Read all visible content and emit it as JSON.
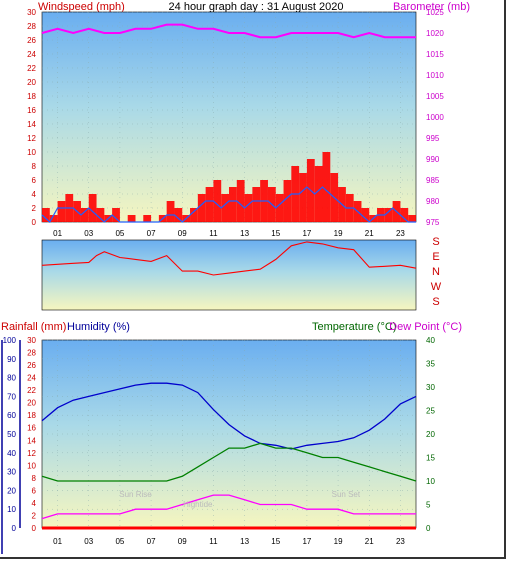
{
  "title": "24 hour graph day : 31 August 2020",
  "colors": {
    "wind_gust": "#ff0000",
    "wind_avg": "#2060ff",
    "barometer": "#ff00ff",
    "rain": "#ff0000",
    "humidity": "#0000cc",
    "temperature": "#008000",
    "dewpoint": "#ff00ff",
    "axis_red": "#cc0000",
    "axis_blue": "#000099",
    "axis_green": "#006600",
    "axis_magenta": "#cc00cc"
  },
  "chart_data": [
    {
      "type": "line",
      "name": "wind-barometer",
      "title": "24 hour graph day : 31 August 2020",
      "ylabel_left": "Windspeed (mph)",
      "ylabel_right": "Barometer (mb)",
      "x_ticks": [
        "01",
        "03",
        "05",
        "07",
        "09",
        "11",
        "13",
        "15",
        "17",
        "19",
        "21",
        "23"
      ],
      "xlim": [
        0,
        24
      ],
      "ylim_left": [
        0,
        30
      ],
      "ylim_right": [
        975,
        1025
      ],
      "y_ticks_left": [
        "0",
        "2",
        "4",
        "6",
        "8",
        "10",
        "12",
        "14",
        "16",
        "18",
        "20",
        "22",
        "24",
        "26",
        "28",
        "30"
      ],
      "y_ticks_right": [
        "975",
        "980",
        "985",
        "990",
        "995",
        "1000",
        "1005",
        "1010",
        "1015",
        "1020",
        "1025"
      ],
      "series": [
        {
          "name": "Windspeed gust",
          "axis": "left",
          "x": [
            0,
            0.5,
            1,
            1.5,
            2,
            2.5,
            3,
            3.5,
            4,
            4.5,
            5,
            5.5,
            6,
            6.5,
            7,
            7.5,
            8,
            8.5,
            9,
            9.5,
            10,
            10.5,
            11,
            11.5,
            12,
            12.5,
            13,
            13.5,
            14,
            14.5,
            15,
            15.5,
            16,
            16.5,
            17,
            17.5,
            18,
            18.5,
            19,
            19.5,
            20,
            20.5,
            21,
            21.5,
            22,
            22.5,
            23,
            23.5,
            24
          ],
          "values": [
            2,
            1,
            3,
            4,
            3,
            2,
            4,
            2,
            1,
            2,
            0,
            1,
            0,
            1,
            0,
            1,
            3,
            2,
            1,
            2,
            4,
            5,
            6,
            4,
            5,
            6,
            4,
            5,
            6,
            5,
            4,
            6,
            8,
            7,
            9,
            8,
            10,
            7,
            5,
            4,
            3,
            2,
            1,
            2,
            2,
            3,
            2,
            1,
            1
          ]
        },
        {
          "name": "Windspeed average",
          "axis": "left",
          "x": [
            0,
            0.5,
            1,
            1.5,
            2,
            2.5,
            3,
            3.5,
            4,
            4.5,
            5,
            5.5,
            6,
            6.5,
            7,
            7.5,
            8,
            8.5,
            9,
            9.5,
            10,
            10.5,
            11,
            11.5,
            12,
            12.5,
            13,
            13.5,
            14,
            14.5,
            15,
            15.5,
            16,
            16.5,
            17,
            17.5,
            18,
            18.5,
            19,
            19.5,
            20,
            20.5,
            21,
            21.5,
            22,
            22.5,
            23,
            23.5,
            24
          ],
          "values": [
            1,
            0,
            2,
            2,
            2,
            1,
            2,
            1,
            0,
            1,
            0,
            0,
            0,
            0,
            0,
            0,
            1,
            1,
            0,
            1,
            2,
            3,
            3,
            2,
            3,
            3,
            2,
            3,
            3,
            3,
            2,
            3,
            4,
            4,
            5,
            4,
            5,
            4,
            3,
            2,
            2,
            1,
            0,
            1,
            1,
            2,
            1,
            0,
            0
          ]
        },
        {
          "name": "Barometer",
          "axis": "right",
          "x": [
            0,
            1,
            2,
            3,
            4,
            5,
            6,
            7,
            8,
            9,
            10,
            11,
            12,
            13,
            14,
            15,
            16,
            17,
            18,
            19,
            20,
            21,
            22,
            23,
            24
          ],
          "values": [
            1020,
            1021,
            1020,
            1021,
            1020,
            1020,
            1021,
            1021,
            1022,
            1022,
            1021,
            1021,
            1020,
            1020,
            1019,
            1019,
            1020,
            1020,
            1020,
            1020,
            1019,
            1020,
            1019,
            1019,
            1019
          ]
        }
      ]
    },
    {
      "type": "line",
      "name": "wind-direction",
      "y_labels": [
        "S",
        "E",
        "N",
        "W",
        "S"
      ],
      "series": [
        {
          "name": "Wind direction",
          "x": [
            0,
            1,
            2,
            3,
            3.5,
            4,
            5,
            6,
            7,
            8,
            9,
            10,
            11,
            12,
            13,
            14,
            15,
            16,
            17,
            18,
            19,
            20,
            21,
            22,
            23,
            24
          ],
          "values": [
            230,
            235,
            240,
            245,
            280,
            300,
            270,
            260,
            250,
            280,
            200,
            200,
            180,
            190,
            200,
            210,
            260,
            330,
            350,
            340,
            320,
            310,
            220,
            225,
            230,
            215
          ]
        }
      ]
    },
    {
      "type": "line",
      "name": "rain-humidity-temperature",
      "ylabel_left_1": "Rainfall (mm)",
      "ylabel_left_2": "Humidity (%)",
      "ylabel_right_1": "Temperature (°C)",
      "ylabel_right_2": "Dew Point (°C)",
      "x_ticks": [
        "01",
        "03",
        "05",
        "07",
        "09",
        "11",
        "13",
        "15",
        "17",
        "19",
        "21",
        "23"
      ],
      "xlim": [
        0,
        24
      ],
      "y_ticks_humidity": [
        "0",
        "10",
        "20",
        "30",
        "40",
        "50",
        "60",
        "70",
        "80",
        "90",
        "100"
      ],
      "y_ticks_rain": [
        "0",
        "2",
        "4",
        "6",
        "8",
        "10",
        "12",
        "14",
        "16",
        "18",
        "20",
        "22",
        "24",
        "26",
        "28",
        "30"
      ],
      "y_ticks_temp": [
        "0",
        "5",
        "10",
        "15",
        "20",
        "25",
        "30",
        "35",
        "40"
      ],
      "annotations": [
        "Sun Rise",
        "Hightide",
        "Sun Set"
      ],
      "series": [
        {
          "name": "Rainfall",
          "axis": "rain",
          "x": [
            0,
            24
          ],
          "values": [
            0,
            0
          ]
        },
        {
          "name": "Humidity",
          "axis": "humidity",
          "x": [
            0,
            1,
            2,
            3,
            4,
            5,
            6,
            7,
            8,
            9,
            10,
            11,
            12,
            13,
            14,
            15,
            16,
            17,
            18,
            19,
            20,
            21,
            22,
            23,
            24
          ],
          "values": [
            57,
            64,
            68,
            70,
            72,
            74,
            76,
            77,
            77,
            76,
            72,
            63,
            55,
            49,
            45,
            44,
            42,
            44,
            45,
            46,
            48,
            52,
            58,
            66,
            70
          ]
        },
        {
          "name": "Temperature",
          "axis": "temp",
          "x": [
            0,
            1,
            2,
            3,
            4,
            5,
            6,
            7,
            8,
            9,
            10,
            11,
            12,
            13,
            14,
            15,
            16,
            17,
            18,
            19,
            20,
            21,
            22,
            23,
            24
          ],
          "values": [
            11,
            10,
            10,
            10,
            10,
            10,
            10,
            10,
            10,
            11,
            13,
            15,
            17,
            17,
            18,
            17,
            17,
            16,
            15,
            15,
            14,
            13,
            12,
            11,
            10
          ]
        },
        {
          "name": "Dew Point",
          "axis": "temp",
          "x": [
            0,
            1,
            2,
            3,
            4,
            5,
            6,
            7,
            8,
            9,
            10,
            11,
            12,
            13,
            14,
            15,
            16,
            17,
            18,
            19,
            20,
            21,
            22,
            23,
            24
          ],
          "values": [
            2,
            3,
            3,
            3,
            3,
            3,
            4,
            4,
            4,
            5,
            6,
            7,
            7,
            6,
            5,
            5,
            5,
            4,
            4,
            4,
            3,
            3,
            3,
            3,
            3
          ]
        }
      ]
    }
  ]
}
